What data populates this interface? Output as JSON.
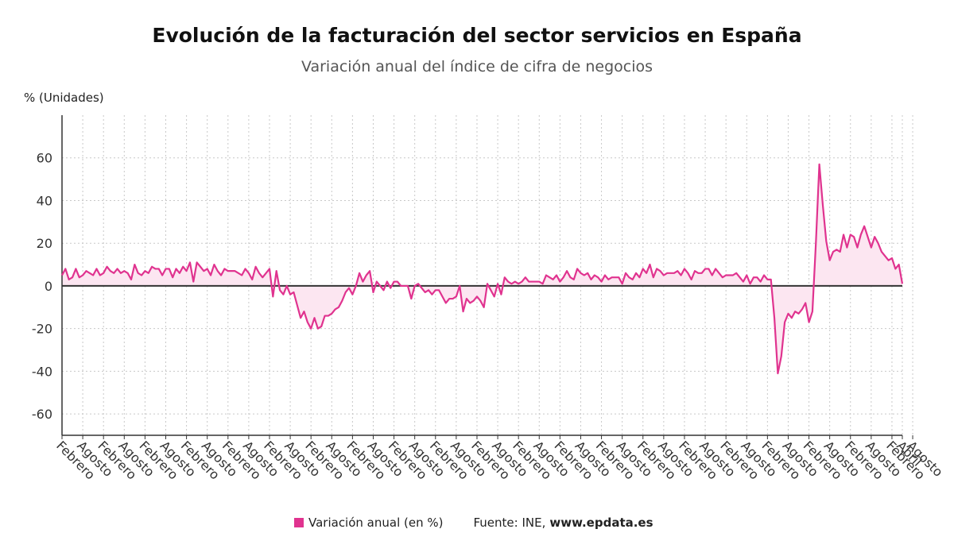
{
  "title": "Evolución de la facturación del sector servicios en España",
  "subtitle": "Variación anual del índice de cifra de negocios",
  "colors": {
    "series": "#e0338f",
    "fill": "#fce6f1",
    "grid": "#c8c8c8",
    "axis": "#333333"
  },
  "legend": {
    "label": "Variación anual (en %)"
  },
  "source": {
    "label": "Fuente: INE,",
    "site": "www.epdata.es"
  },
  "chart_data": {
    "type": "line",
    "ylabel": "% (Unidades)",
    "ylim": [
      -70,
      80
    ],
    "yticks": [
      -60,
      -40,
      -20,
      0,
      20,
      40,
      60
    ],
    "grid": true,
    "legend_position": "bottom",
    "x_tick_labels": [
      "Febrero",
      "Agosto",
      "Febrero",
      "Agosto",
      "Febrero",
      "Agosto",
      "Febrero",
      "Agosto",
      "Febrero",
      "Agosto",
      "Febrero",
      "Agosto",
      "Febrero",
      "Agosto",
      "Febrero",
      "Agosto",
      "Febrero",
      "Agosto",
      "Febrero",
      "Agosto",
      "Febrero",
      "Agosto",
      "Febrero",
      "Agosto",
      "Febrero",
      "Agosto",
      "Febrero",
      "Agosto",
      "Febrero",
      "Agosto",
      "Febrero",
      "Agosto",
      "Febrero",
      "Agosto",
      "Febrero",
      "Agosto",
      "Febrero",
      "Agosto",
      "Febrero",
      "Agosto",
      "Febrero",
      "Agosto",
      "Abril"
    ],
    "series": [
      {
        "name": "Variación anual (en %)",
        "values": [
          5,
          8,
          3,
          4,
          8,
          4,
          5,
          7,
          6,
          5,
          8,
          5,
          6,
          9,
          7,
          6,
          8,
          6,
          7,
          6,
          3,
          10,
          6,
          5,
          7,
          6,
          9,
          8,
          8,
          5,
          8,
          8,
          4,
          8,
          6,
          9,
          7,
          11,
          2,
          11,
          9,
          7,
          8,
          5,
          10,
          7,
          5,
          8,
          7,
          7,
          7,
          6,
          5,
          8,
          6,
          3,
          9,
          6,
          4,
          6,
          8,
          -5,
          7,
          -2,
          -4,
          0,
          -4,
          -3,
          -9,
          -15,
          -12,
          -17,
          -20,
          -15,
          -20,
          -19,
          -14,
          -14,
          -13,
          -11,
          -10,
          -7,
          -3,
          -1,
          -4,
          0,
          6,
          2,
          5,
          7,
          -3,
          2,
          0,
          -2,
          2,
          -1,
          2,
          2,
          0,
          0,
          0,
          -6,
          0,
          1,
          -1,
          -3,
          -2,
          -4,
          -2,
          -2,
          -5,
          -8,
          -6,
          -6,
          -5,
          0,
          -12,
          -6,
          -8,
          -7,
          -5,
          -7,
          -10,
          1,
          -2,
          -5,
          1,
          -4,
          4,
          2,
          1,
          2,
          1,
          2,
          4,
          2,
          2,
          2,
          2,
          1,
          5,
          4,
          3,
          5,
          2,
          4,
          7,
          4,
          3,
          8,
          6,
          5,
          6,
          3,
          5,
          4,
          2,
          5,
          3,
          4,
          4,
          4,
          1,
          6,
          4,
          3,
          6,
          4,
          8,
          6,
          10,
          4,
          8,
          7,
          5,
          6,
          6,
          6,
          7,
          5,
          8,
          6,
          3,
          7,
          6,
          6,
          8,
          8,
          5,
          8,
          6,
          4,
          5,
          5,
          5,
          6,
          4,
          2,
          5,
          1,
          4,
          4,
          2,
          5,
          3,
          3,
          -15,
          -41,
          -33,
          -17,
          -13,
          -15,
          -12,
          -13,
          -11,
          -8,
          -17,
          -12,
          20,
          57,
          38,
          21,
          12,
          16,
          17,
          16,
          24,
          18,
          24,
          23,
          18,
          24,
          28,
          23,
          18,
          23,
          20,
          16,
          14,
          12,
          13,
          8,
          10,
          1
        ]
      }
    ]
  }
}
